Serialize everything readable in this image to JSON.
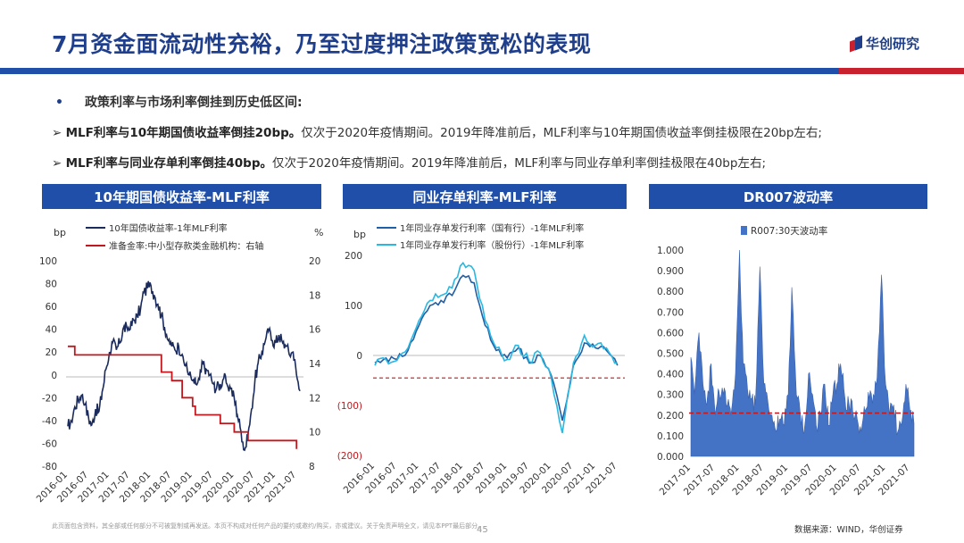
{
  "slide": {
    "title": "7月资金面流动性充裕，乃至过度押注政策宽松的表现",
    "logo_text": "华创研究",
    "bullet_marker": "•",
    "bullet_heading": "政策利率与市场利率倒挂到历史低区间:",
    "points": [
      {
        "marker": "➢",
        "bold": "MLF利率与10年期国债收益率倒挂20bp。",
        "text": "仅次于2020年疫情期间。2019年降准前后，MLF利率与10年期国债收益率倒挂极限在20bp左右;"
      },
      {
        "marker": "➢",
        "bold": "MLF利率与同业存单利率倒挂40bp。",
        "text": "仅次于2020年疫情期间。2019年降准前后，MLF利率与同业存单利率倒挂极限在40bp左右;"
      }
    ],
    "footer_disclaimer": "此页面包含资料，其全部或任何部分不可被复制或再发送。本页不构成对任何产品的要约或邀约/购买，亦或建议。关于免责声明全文，请见本PPT最后部分。",
    "page_number": "45",
    "source": "数据来源：WIND，华创证券"
  },
  "colors": {
    "brand_blue": "#1F4FA8",
    "title_blue": "#1F3F8C",
    "accent_red": "#C9222E",
    "navy_series": "#1A2B5C",
    "red_series": "#C0181E",
    "cyan_series": "#2AB7E0",
    "dark_blue_series": "#1F5FA8",
    "bar_blue": "#4472C4"
  },
  "chart_data": [
    {
      "type": "line",
      "title": "10年期国债收益率-MLF利率",
      "ylabel": "bp",
      "y2label": "%",
      "ylim": [
        -80,
        100
      ],
      "y2lim": [
        8,
        20
      ],
      "yticks": [
        "100",
        "80",
        "60",
        "40",
        "20",
        "0",
        "-20",
        "-40",
        "-60",
        "-80"
      ],
      "y2ticks": [
        "20",
        "18",
        "16",
        "14",
        "12",
        "10",
        "8"
      ],
      "xticks": [
        "2016-01",
        "2016-07",
        "2017-01",
        "2017-07",
        "2018-01",
        "2018-07",
        "2019-01",
        "2019-07",
        "2020-01",
        "2020-07",
        "2021-01",
        "2021-07"
      ],
      "legend_position": "top-left",
      "series": [
        {
          "name": "10年国债收益率-1年MLF利率",
          "axis": "left",
          "color": "#1A2B5C",
          "points": [
            [
              "2016-01",
              -45
            ],
            [
              "2016-02",
              -40
            ],
            [
              "2016-03",
              -28
            ],
            [
              "2016-04",
              -22
            ],
            [
              "2016-05",
              -18
            ],
            [
              "2016-06",
              -26
            ],
            [
              "2016-07",
              -38
            ],
            [
              "2016-08",
              -44
            ],
            [
              "2016-09",
              -30
            ],
            [
              "2016-10",
              -32
            ],
            [
              "2016-11",
              -15
            ],
            [
              "2016-12",
              5
            ],
            [
              "2017-01",
              20
            ],
            [
              "2017-02",
              28
            ],
            [
              "2017-03",
              22
            ],
            [
              "2017-04",
              28
            ],
            [
              "2017-05",
              40
            ],
            [
              "2017-06",
              42
            ],
            [
              "2017-07",
              40
            ],
            [
              "2017-08",
              48
            ],
            [
              "2017-09",
              52
            ],
            [
              "2017-10",
              58
            ],
            [
              "2017-11",
              72
            ],
            [
              "2017-12",
              76
            ],
            [
              "2018-01",
              78
            ],
            [
              "2018-02",
              70
            ],
            [
              "2018-03",
              62
            ],
            [
              "2018-04",
              52
            ],
            [
              "2018-05",
              42
            ],
            [
              "2018-06",
              30
            ],
            [
              "2018-07",
              25
            ],
            [
              "2018-08",
              22
            ],
            [
              "2018-09",
              25
            ],
            [
              "2018-10",
              18
            ],
            [
              "2018-11",
              8
            ],
            [
              "2018-12",
              0
            ],
            [
              "2019-01",
              -5
            ],
            [
              "2019-02",
              -8
            ],
            [
              "2019-03",
              -4
            ],
            [
              "2019-04",
              10
            ],
            [
              "2019-05",
              5
            ],
            [
              "2019-06",
              0
            ],
            [
              "2019-07",
              -8
            ],
            [
              "2019-08",
              -12
            ],
            [
              "2019-09",
              -8
            ],
            [
              "2019-10",
              -3
            ],
            [
              "2019-11",
              -8
            ],
            [
              "2019-12",
              -12
            ],
            [
              "2020-01",
              -20
            ],
            [
              "2020-02",
              -35
            ],
            [
              "2020-03",
              -50
            ],
            [
              "2020-04",
              -66
            ],
            [
              "2020-05",
              -55
            ],
            [
              "2020-06",
              -30
            ],
            [
              "2020-07",
              -5
            ],
            [
              "2020-08",
              10
            ],
            [
              "2020-09",
              20
            ],
            [
              "2020-10",
              30
            ],
            [
              "2020-11",
              38
            ],
            [
              "2020-12",
              30
            ],
            [
              "2021-01",
              28
            ],
            [
              "2021-02",
              35
            ],
            [
              "2021-03",
              28
            ],
            [
              "2021-04",
              25
            ],
            [
              "2021-05",
              18
            ],
            [
              "2021-06",
              20
            ],
            [
              "2021-07",
              0
            ],
            [
              "2021-08",
              -14
            ]
          ]
        },
        {
          "name": "准备金率:中小型存款类金融机构：右轴",
          "axis": "right",
          "color": "#C0181E",
          "step": true,
          "points": [
            [
              "2016-01",
              15.0
            ],
            [
              "2016-03",
              14.5
            ],
            [
              "2018-04",
              13.5
            ],
            [
              "2018-07",
              13.0
            ],
            [
              "2018-10",
              12.0
            ],
            [
              "2019-01",
              11.5
            ],
            [
              "2019-01-25",
              11.0
            ],
            [
              "2019-09",
              10.5
            ],
            [
              "2020-01",
              10.0
            ],
            [
              "2020-05",
              9.5
            ],
            [
              "2021-07",
              9.0
            ]
          ]
        }
      ]
    },
    {
      "type": "line",
      "title": "同业存单利率-MLF利率",
      "ylabel": "bp",
      "ylim": [
        -200,
        200
      ],
      "yticks": [
        "200",
        "100",
        "0",
        "(100)",
        "(200)"
      ],
      "xticks": [
        "2016-01",
        "2016-07",
        "2017-01",
        "2017-07",
        "2018-01",
        "2018-07",
        "2019-01",
        "2019-07",
        "2020-01",
        "2020-07",
        "2021-01",
        "2021-07"
      ],
      "reference_line": {
        "value": -45,
        "style": "dashed",
        "color": "#C0181E"
      },
      "legend_position": "top-left",
      "series": [
        {
          "name": "1年同业存单发行利率（国有行）-1年MLF利率",
          "color": "#1F5FA8",
          "points": [
            [
              "2016-01",
              -15
            ],
            [
              "2016-04",
              -5
            ],
            [
              "2016-07",
              -8
            ],
            [
              "2016-10",
              10
            ],
            [
              "2017-01",
              60
            ],
            [
              "2017-04",
              100
            ],
            [
              "2017-07",
              110
            ],
            [
              "2017-10",
              120
            ],
            [
              "2018-01",
              160
            ],
            [
              "2018-04",
              145
            ],
            [
              "2018-07",
              60
            ],
            [
              "2018-10",
              10
            ],
            [
              "2019-01",
              -5
            ],
            [
              "2019-04",
              15
            ],
            [
              "2019-07",
              -15
            ],
            [
              "2019-10",
              0
            ],
            [
              "2020-01",
              -40
            ],
            [
              "2020-04",
              -130
            ],
            [
              "2020-07",
              -20
            ],
            [
              "2020-10",
              25
            ],
            [
              "2021-01",
              15
            ],
            [
              "2021-04",
              10
            ],
            [
              "2021-07",
              -20
            ]
          ]
        },
        {
          "name": "1年同业存单发行利率（股份行）-1年MLF利率",
          "color": "#2AB7E0",
          "points": [
            [
              "2016-01",
              -20
            ],
            [
              "2016-04",
              -8
            ],
            [
              "2016-07",
              -10
            ],
            [
              "2016-10",
              15
            ],
            [
              "2017-01",
              70
            ],
            [
              "2017-04",
              110
            ],
            [
              "2017-07",
              120
            ],
            [
              "2017-10",
              135
            ],
            [
              "2018-01",
              185
            ],
            [
              "2018-04",
              170
            ],
            [
              "2018-07",
              70
            ],
            [
              "2018-10",
              15
            ],
            [
              "2019-01",
              -8
            ],
            [
              "2019-04",
              20
            ],
            [
              "2019-07",
              -12
            ],
            [
              "2019-10",
              5
            ],
            [
              "2020-01",
              -45
            ],
            [
              "2020-04",
              -155
            ],
            [
              "2020-07",
              -15
            ],
            [
              "2020-10",
              40
            ],
            [
              "2021-01",
              20
            ],
            [
              "2021-04",
              15
            ],
            [
              "2021-07",
              -15
            ]
          ]
        }
      ]
    },
    {
      "type": "area",
      "title": "DR007波动率",
      "ylim": [
        0,
        1.0
      ],
      "yticks": [
        "1.000",
        "0.900",
        "0.800",
        "0.700",
        "0.600",
        "0.500",
        "0.400",
        "0.300",
        "0.200",
        "0.100",
        "0.000"
      ],
      "xticks": [
        "2017-01",
        "2017-07",
        "2018-01",
        "2018-07",
        "2019-01",
        "2019-07",
        "2020-01",
        "2020-07",
        "2021-01",
        "2021-07"
      ],
      "reference_line": {
        "value": 0.21,
        "style": "dashed",
        "color": "#C0181E"
      },
      "legend_position": "top-left",
      "series": [
        {
          "name": "R007:30天波动率",
          "color": "#4472C4",
          "points": [
            [
              "2017-01",
              0.48
            ],
            [
              "2017-02",
              0.3
            ],
            [
              "2017-03",
              0.6
            ],
            [
              "2017-04",
              0.35
            ],
            [
              "2017-05",
              0.25
            ],
            [
              "2017-06",
              0.45
            ],
            [
              "2017-07",
              0.2
            ],
            [
              "2017-08",
              0.32
            ],
            [
              "2017-09",
              0.3
            ],
            [
              "2017-10",
              0.25
            ],
            [
              "2017-11",
              0.2
            ],
            [
              "2017-12",
              0.4
            ],
            [
              "2018-01",
              1.0
            ],
            [
              "2018-02",
              0.45
            ],
            [
              "2018-03",
              0.32
            ],
            [
              "2018-04",
              0.28
            ],
            [
              "2018-05",
              0.25
            ],
            [
              "2018-06",
              0.92
            ],
            [
              "2018-07",
              0.35
            ],
            [
              "2018-08",
              0.28
            ],
            [
              "2018-09",
              0.2
            ],
            [
              "2018-10",
              0.12
            ],
            [
              "2018-11",
              0.18
            ],
            [
              "2018-12",
              0.15
            ],
            [
              "2019-01",
              0.3
            ],
            [
              "2019-02",
              0.82
            ],
            [
              "2019-03",
              0.3
            ],
            [
              "2019-04",
              0.2
            ],
            [
              "2019-05",
              0.12
            ],
            [
              "2019-06",
              0.4
            ],
            [
              "2019-07",
              0.3
            ],
            [
              "2019-08",
              0.15
            ],
            [
              "2019-09",
              0.2
            ],
            [
              "2019-10",
              0.35
            ],
            [
              "2019-11",
              0.15
            ],
            [
              "2019-12",
              0.3
            ],
            [
              "2020-01",
              0.35
            ],
            [
              "2020-02",
              0.45
            ],
            [
              "2020-03",
              0.28
            ],
            [
              "2020-04",
              0.25
            ],
            [
              "2020-05",
              0.22
            ],
            [
              "2020-06",
              0.18
            ],
            [
              "2020-07",
              0.12
            ],
            [
              "2020-08",
              0.22
            ],
            [
              "2020-09",
              0.28
            ],
            [
              "2020-10",
              0.3
            ],
            [
              "2020-11",
              0.38
            ],
            [
              "2020-12",
              0.88
            ],
            [
              "2021-01",
              0.35
            ],
            [
              "2021-02",
              0.2
            ],
            [
              "2021-03",
              0.25
            ],
            [
              "2021-04",
              0.12
            ],
            [
              "2021-05",
              0.15
            ],
            [
              "2021-06",
              0.35
            ],
            [
              "2021-07",
              0.22
            ],
            [
              "2021-08",
              0.16
            ]
          ]
        }
      ]
    }
  ]
}
